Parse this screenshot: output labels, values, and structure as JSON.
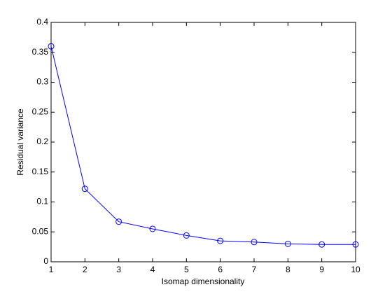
{
  "chart_data": {
    "type": "line",
    "x_label": "Isomap dimensionality",
    "y_label": "Residual variance",
    "x": [
      1,
      2,
      3,
      4,
      5,
      6,
      7,
      8,
      9,
      10
    ],
    "series": [
      {
        "color": "#0000ff",
        "marker": "circle",
        "values": [
          0.36,
          0.122,
          0.067,
          0.055,
          0.044,
          0.035,
          0.033,
          0.03,
          0.029,
          0.029
        ]
      }
    ],
    "xlim": [
      1,
      10
    ],
    "xticks": [
      1,
      2,
      3,
      4,
      5,
      6,
      7,
      8,
      9,
      10
    ],
    "ylim": [
      0,
      0.4
    ],
    "yticks": [
      0,
      0.05,
      0.1,
      0.15,
      0.2,
      0.25,
      0.3,
      0.35,
      0.4
    ],
    "grid": false
  }
}
